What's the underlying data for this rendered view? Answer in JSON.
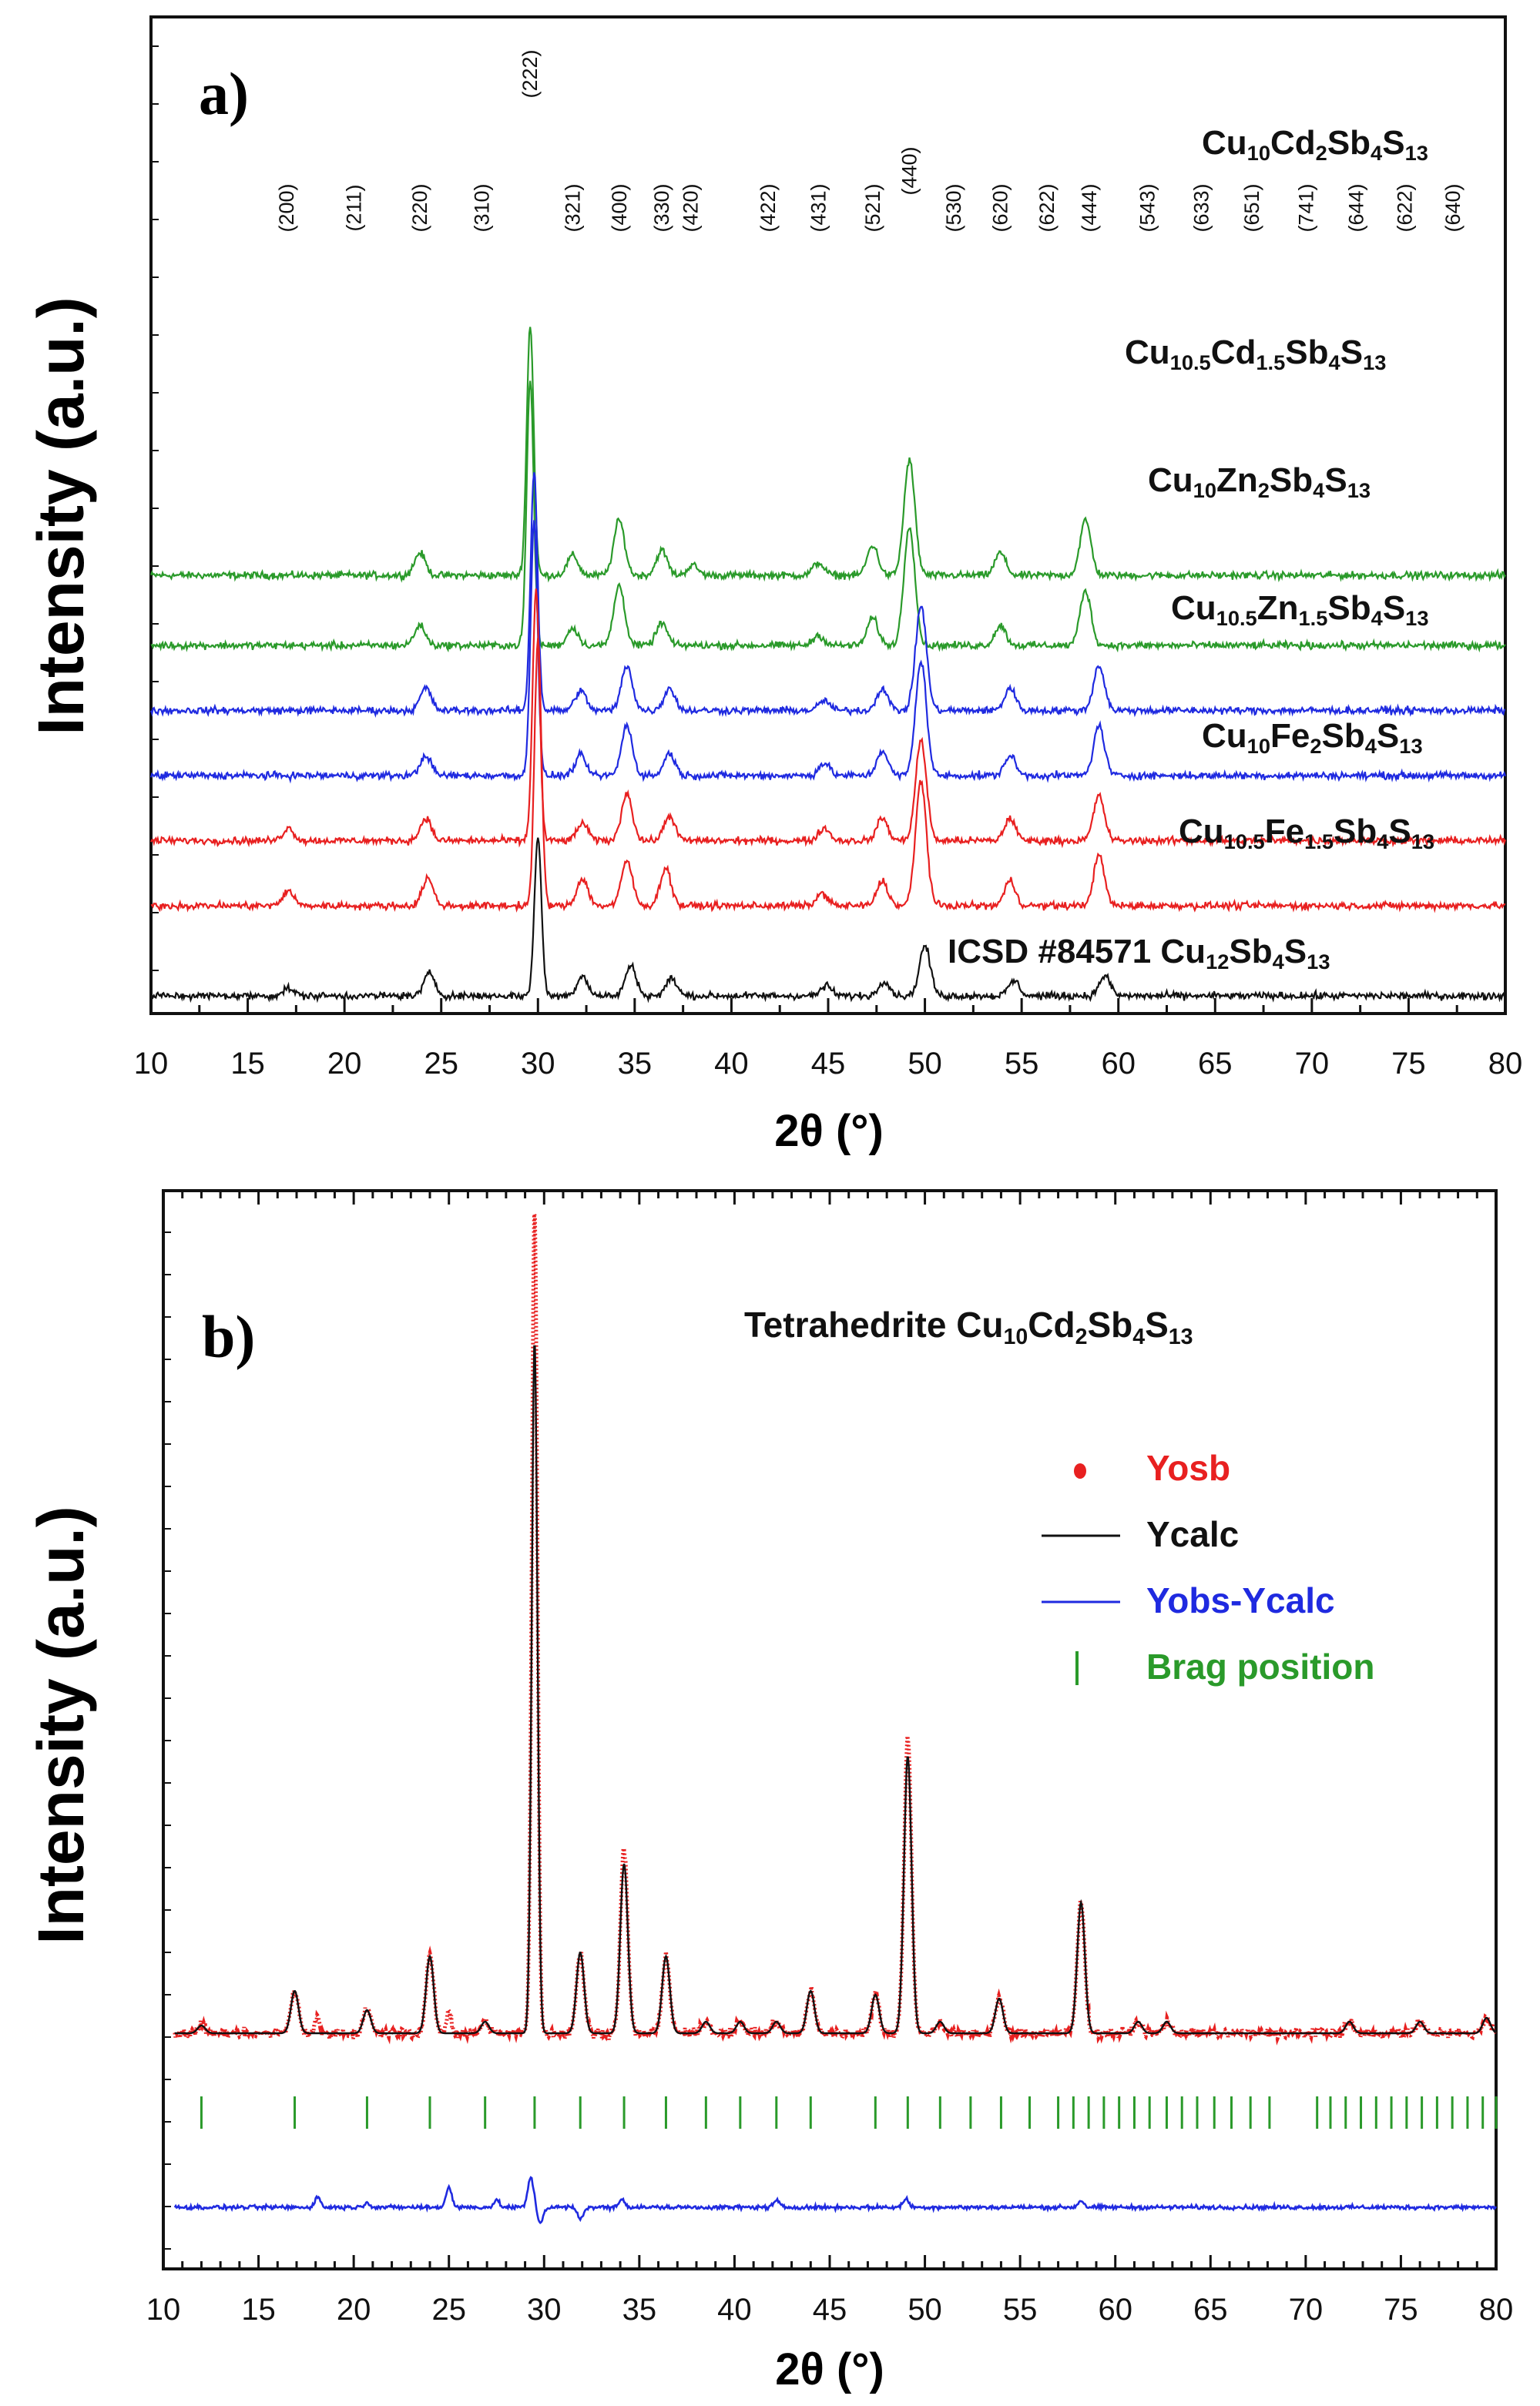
{
  "chart_data": [
    {
      "panel_label": "a)",
      "type": "line",
      "xlabel": "2θ (°)",
      "ylabel": "Intensity (a.u.)",
      "xlim": [
        10,
        80
      ],
      "xticks": [
        10,
        15,
        20,
        25,
        30,
        35,
        40,
        45,
        50,
        55,
        60,
        65,
        70,
        75,
        80
      ],
      "hkl_labels": [
        {
          "x": 17.0,
          "label": "(200)"
        },
        {
          "x": 20.5,
          "label": "(211)"
        },
        {
          "x": 23.9,
          "label": "(220)"
        },
        {
          "x": 27.1,
          "label": "(310)"
        },
        {
          "x": 29.6,
          "label": "(222)"
        },
        {
          "x": 31.8,
          "label": "(321)"
        },
        {
          "x": 34.2,
          "label": "(400)"
        },
        {
          "x": 36.4,
          "label": "(330)"
        },
        {
          "x": 37.9,
          "label": "(420)"
        },
        {
          "x": 41.9,
          "label": "(422)"
        },
        {
          "x": 44.5,
          "label": "(431)"
        },
        {
          "x": 47.3,
          "label": "(521)"
        },
        {
          "x": 49.2,
          "label": "(440)"
        },
        {
          "x": 51.5,
          "label": "(530)"
        },
        {
          "x": 53.9,
          "label": "(620)"
        },
        {
          "x": 56.3,
          "label": "(622)"
        },
        {
          "x": 58.5,
          "label": "(444)"
        },
        {
          "x": 61.5,
          "label": "(543)"
        },
        {
          "x": 64.3,
          "label": "(633)"
        },
        {
          "x": 66.9,
          "label": "(651)"
        },
        {
          "x": 69.7,
          "label": "(741)"
        },
        {
          "x": 72.3,
          "label": "(644)"
        },
        {
          "x": 74.8,
          "label": "(622)"
        },
        {
          "x": 77.3,
          "label": "(640)"
        }
      ],
      "series": [
        {
          "name": "Cu10Cd2Sb4S13",
          "label_parts": [
            [
              "Cu",
              ""
            ],
            [
              "10",
              "sub"
            ],
            [
              "Cd",
              ""
            ],
            [
              "2",
              "sub"
            ],
            [
              "Sb",
              ""
            ],
            [
              "4",
              "sub"
            ],
            [
              "S",
              ""
            ],
            [
              "13",
              "sub"
            ]
          ],
          "color": "#2a9a2a",
          "offset": 8.6,
          "shift": -0.4,
          "peaks": [
            [
              23.9,
              0.45
            ],
            [
              29.6,
              5.0
            ],
            [
              31.8,
              0.4
            ],
            [
              34.2,
              1.1
            ],
            [
              36.4,
              0.5
            ],
            [
              38.0,
              0.2
            ],
            [
              44.5,
              0.25
            ],
            [
              47.3,
              0.6
            ],
            [
              49.2,
              2.3
            ],
            [
              53.9,
              0.45
            ],
            [
              58.3,
              1.1
            ]
          ]
        },
        {
          "name": "Cu10.5Cd1.5Sb4S13",
          "label_parts": [
            [
              "Cu",
              ""
            ],
            [
              "10.5",
              "sub"
            ],
            [
              "Cd",
              ""
            ],
            [
              "1.5",
              "sub"
            ],
            [
              "Sb",
              ""
            ],
            [
              "4",
              "sub"
            ],
            [
              "S",
              ""
            ],
            [
              "13",
              "sub"
            ]
          ],
          "color": "#2a9a2a",
          "offset": 7.2,
          "shift": -0.4,
          "peaks": [
            [
              23.9,
              0.4
            ],
            [
              29.6,
              5.3
            ],
            [
              31.8,
              0.35
            ],
            [
              34.2,
              1.2
            ],
            [
              36.4,
              0.45
            ],
            [
              44.5,
              0.2
            ],
            [
              47.3,
              0.55
            ],
            [
              49.2,
              2.4
            ],
            [
              53.9,
              0.4
            ],
            [
              58.3,
              1.1
            ]
          ]
        },
        {
          "name": "Cu10Zn2Sb4S13",
          "label_parts": [
            [
              "Cu",
              ""
            ],
            [
              "10",
              "sub"
            ],
            [
              "Zn",
              ""
            ],
            [
              "2",
              "sub"
            ],
            [
              "Sb",
              ""
            ],
            [
              "4",
              "sub"
            ],
            [
              "S",
              ""
            ],
            [
              "13",
              "sub"
            ]
          ],
          "color": "#1f2ae0",
          "offset": 5.9,
          "shift": 0.0,
          "peaks": [
            [
              24.2,
              0.45
            ],
            [
              29.8,
              4.8
            ],
            [
              32.2,
              0.4
            ],
            [
              34.6,
              0.9
            ],
            [
              36.8,
              0.45
            ],
            [
              44.8,
              0.2
            ],
            [
              47.8,
              0.45
            ],
            [
              49.8,
              2.1
            ],
            [
              54.4,
              0.45
            ],
            [
              59.0,
              0.9
            ]
          ]
        },
        {
          "name": "Cu10.5Zn1.5Sb4S13",
          "label_parts": [
            [
              "Cu",
              ""
            ],
            [
              "10.5",
              "sub"
            ],
            [
              "Zn",
              ""
            ],
            [
              "1.5",
              "sub"
            ],
            [
              "Sb",
              ""
            ],
            [
              "4",
              "sub"
            ],
            [
              "S",
              ""
            ],
            [
              "13",
              "sub"
            ]
          ],
          "color": "#1f2ae0",
          "offset": 4.6,
          "shift": 0.0,
          "peaks": [
            [
              24.2,
              0.4
            ],
            [
              29.8,
              5.1
            ],
            [
              32.2,
              0.4
            ],
            [
              34.6,
              1.0
            ],
            [
              36.8,
              0.45
            ],
            [
              44.8,
              0.25
            ],
            [
              47.8,
              0.5
            ],
            [
              49.8,
              2.3
            ],
            [
              54.4,
              0.4
            ],
            [
              59.0,
              1.0
            ]
          ]
        },
        {
          "name": "Cu10Fe2Sb4S13",
          "label_parts": [
            [
              "Cu",
              ""
            ],
            [
              "10",
              "sub"
            ],
            [
              "Fe",
              ""
            ],
            [
              "2",
              "sub"
            ],
            [
              "Sb",
              ""
            ],
            [
              "4",
              "sub"
            ],
            [
              "S",
              ""
            ],
            [
              "13",
              "sub"
            ]
          ],
          "color": "#e82020",
          "offset": 3.3,
          "shift": 0.0,
          "peaks": [
            [
              17.1,
              0.25
            ],
            [
              24.2,
              0.45
            ],
            [
              29.9,
              5.0
            ],
            [
              32.3,
              0.35
            ],
            [
              34.6,
              0.95
            ],
            [
              36.8,
              0.5
            ],
            [
              44.8,
              0.25
            ],
            [
              47.8,
              0.45
            ],
            [
              49.8,
              2.0
            ],
            [
              54.4,
              0.45
            ],
            [
              59.0,
              0.9
            ]
          ]
        },
        {
          "name": "Cu10.5Fe1.5Sb4S13",
          "label_parts": [
            [
              "Cu",
              ""
            ],
            [
              "10.5",
              "sub"
            ],
            [
              "Fe",
              ""
            ],
            [
              "1.5",
              "sub"
            ],
            [
              "Sb",
              ""
            ],
            [
              "4",
              "sub"
            ],
            [
              "S",
              ""
            ],
            [
              "13",
              "sub"
            ]
          ],
          "color": "#e82020",
          "offset": 2.0,
          "shift": 0.0,
          "peaks": [
            [
              17.1,
              0.3
            ],
            [
              24.3,
              0.55
            ],
            [
              30.0,
              5.3
            ],
            [
              32.3,
              0.55
            ],
            [
              34.6,
              0.9
            ],
            [
              36.6,
              0.75
            ],
            [
              44.7,
              0.25
            ],
            [
              47.8,
              0.5
            ],
            [
              49.8,
              2.5
            ],
            [
              54.4,
              0.5
            ],
            [
              59.0,
              1.0
            ]
          ]
        },
        {
          "name": "ICSD #84571 Cu12Sb4S13",
          "label_parts": [
            [
              "ICSD #84571    Cu",
              ""
            ],
            [
              "12",
              "sub"
            ],
            [
              "Sb",
              ""
            ],
            [
              "4",
              "sub"
            ],
            [
              "S",
              ""
            ],
            [
              "13",
              "sub"
            ]
          ],
          "color": "#111111",
          "offset": 0.2,
          "shift": 0.0,
          "peaks": [
            [
              17.1,
              0.15
            ],
            [
              24.4,
              0.45
            ],
            [
              30.0,
              3.2
            ],
            [
              32.3,
              0.4
            ],
            [
              34.8,
              0.6
            ],
            [
              36.9,
              0.35
            ],
            [
              44.9,
              0.2
            ],
            [
              47.9,
              0.3
            ],
            [
              50.0,
              1.0
            ],
            [
              54.6,
              0.3
            ],
            [
              59.3,
              0.4
            ]
          ]
        }
      ]
    },
    {
      "panel_label": "b)",
      "type": "line",
      "title_parts": [
        [
          "Tetrahedrite Cu",
          ""
        ],
        [
          "10",
          "sub"
        ],
        [
          "Cd",
          ""
        ],
        [
          "2",
          "sub"
        ],
        [
          "Sb",
          ""
        ],
        [
          "4",
          "sub"
        ],
        [
          "S",
          ""
        ],
        [
          "13",
          "sub"
        ]
      ],
      "xlabel": "2θ (°)",
      "ylabel": "Intensity (a.u.)",
      "xlim": [
        10,
        80
      ],
      "xticks": [
        10,
        15,
        20,
        25,
        30,
        35,
        40,
        45,
        50,
        55,
        60,
        65,
        70,
        75,
        80
      ],
      "legend": [
        {
          "label": "Yosb",
          "marker": "dot",
          "color": "#e82020"
        },
        {
          "label": "Ycalc",
          "marker": "line",
          "color": "#111111"
        },
        {
          "label": "Yobs-Ycalc",
          "marker": "line",
          "color": "#1f2ae0"
        },
        {
          "label": "Brag position",
          "marker": "bar",
          "color": "#2a9a2a"
        }
      ],
      "calc_peaks": [
        [
          12.0,
          0.2
        ],
        [
          16.9,
          1.1
        ],
        [
          20.7,
          0.6
        ],
        [
          24.0,
          2.0
        ],
        [
          26.9,
          0.3
        ],
        [
          29.5,
          18.0
        ],
        [
          31.9,
          2.1
        ],
        [
          34.2,
          4.4
        ],
        [
          36.4,
          2.0
        ],
        [
          38.5,
          0.3
        ],
        [
          40.3,
          0.3
        ],
        [
          42.2,
          0.3
        ],
        [
          44.0,
          1.1
        ],
        [
          47.4,
          1.0
        ],
        [
          49.1,
          7.2
        ],
        [
          50.8,
          0.3
        ],
        [
          53.9,
          0.9
        ],
        [
          58.2,
          3.4
        ],
        [
          61.2,
          0.3
        ],
        [
          62.7,
          0.3
        ],
        [
          72.3,
          0.3
        ],
        [
          76.0,
          0.3
        ],
        [
          79.5,
          0.4
        ]
      ],
      "obs_extra": [
        [
          29.5,
          3.5
        ],
        [
          49.1,
          0.5
        ],
        [
          34.2,
          0.4
        ],
        [
          25.0,
          0.6
        ],
        [
          18.1,
          0.4
        ]
      ],
      "bragg_positions": [
        12.0,
        16.9,
        20.7,
        24.0,
        26.9,
        29.5,
        31.9,
        34.2,
        36.4,
        38.5,
        40.3,
        42.2,
        44.0,
        47.4,
        49.1,
        50.8,
        52.4,
        54.0,
        55.5,
        57.0,
        57.8,
        58.6,
        59.4,
        60.2,
        61.0,
        61.8,
        62.7,
        63.5,
        64.3,
        65.2,
        66.1,
        67.1,
        68.1,
        70.6,
        71.3,
        72.1,
        72.9,
        73.7,
        74.5,
        75.3,
        76.1,
        76.9,
        77.7,
        78.5,
        79.3,
        80.0
      ],
      "diff_features": [
        [
          18.1,
          0.6
        ],
        [
          20.7,
          0.3
        ],
        [
          25.0,
          1.2
        ],
        [
          27.5,
          0.4
        ],
        [
          29.3,
          1.8
        ],
        [
          29.8,
          -0.9
        ],
        [
          31.9,
          -0.7
        ],
        [
          34.1,
          0.5
        ],
        [
          42.2,
          0.4
        ],
        [
          49.0,
          0.5
        ],
        [
          58.2,
          0.4
        ]
      ]
    }
  ]
}
